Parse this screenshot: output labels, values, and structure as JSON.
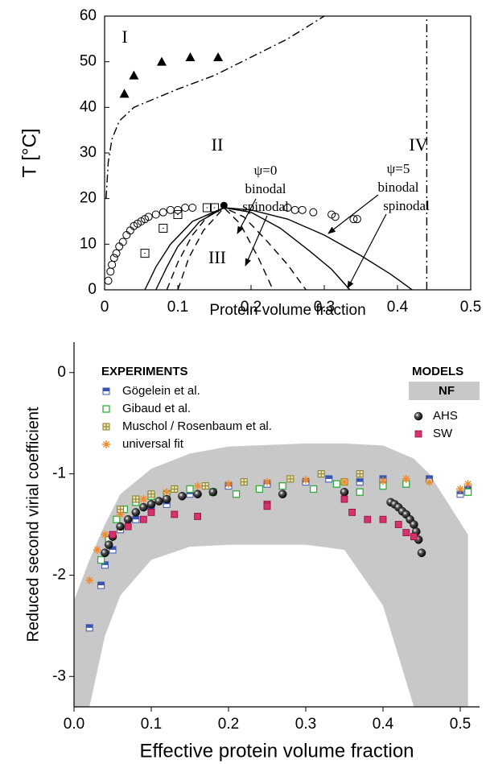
{
  "chart_data": [
    {
      "type": "scatter",
      "ylabel": "T [°C]",
      "xlabel": "Protein volume fraction",
      "xlim": [
        0,
        0.5
      ],
      "xticks": [
        0,
        0.1,
        0.2,
        0.3,
        0.4,
        0.5
      ],
      "ylim": [
        0,
        60
      ],
      "yticks": [
        0,
        10,
        20,
        30,
        40,
        50,
        60
      ],
      "annotations": [
        "I",
        "II",
        "III",
        "IV",
        "ψ=0",
        "binodal",
        "spinodal",
        "ψ=5",
        "binodal",
        "spinodal"
      ],
      "series": [
        {
          "marker": "triangle",
          "color": "#000000",
          "x": [
            0.027,
            0.04,
            0.078,
            0.117,
            0.155
          ],
          "values": [
            43,
            47,
            50,
            51,
            51
          ]
        },
        {
          "marker": "circle-open",
          "color": "#000000",
          "x": [
            0.005,
            0.008,
            0.01,
            0.013,
            0.016,
            0.02,
            0.025,
            0.03,
            0.035,
            0.04,
            0.045,
            0.05,
            0.055,
            0.06,
            0.07,
            0.08,
            0.09,
            0.1,
            0.11,
            0.12,
            0.25,
            0.26,
            0.27,
            0.285,
            0.31,
            0.315,
            0.34,
            0.345
          ],
          "values": [
            2,
            4,
            5.5,
            7,
            8,
            9.5,
            10.5,
            12,
            13,
            14,
            14.5,
            15,
            15.5,
            16,
            16.5,
            17,
            17.5,
            17.5,
            18,
            18,
            18,
            17.5,
            17.5,
            17,
            16.5,
            16,
            15.5,
            15.5
          ]
        },
        {
          "marker": "square-dot",
          "color": "#000000",
          "x": [
            0.055,
            0.08,
            0.1,
            0.14,
            0.15
          ],
          "values": [
            8,
            13.5,
            16.5,
            18,
            18
          ]
        },
        {
          "marker": "circle-filled",
          "color": "#000000",
          "x": [
            0.163
          ],
          "values": [
            18.5
          ]
        },
        {
          "dash": "dashdot",
          "color": "#000000",
          "x": [
            0.002,
            0.005,
            0.01,
            0.02,
            0.04,
            0.07,
            0.1,
            0.15,
            0.2,
            0.25,
            0.3
          ],
          "values": [
            20,
            28,
            33,
            37,
            40,
            42,
            44,
            47,
            51,
            55,
            60
          ]
        },
        {
          "dash": "dashdot",
          "color": "#000000",
          "x": [
            0.44,
            0.44
          ],
          "values": [
            0,
            60
          ]
        },
        {
          "dash": "solid",
          "color": "#000000",
          "x": [
            0.055,
            0.07,
            0.09,
            0.12,
            0.163,
            0.2,
            0.25,
            0.3,
            0.35,
            0.39,
            0.42
          ],
          "values": [
            0,
            5,
            10,
            15,
            18,
            17.5,
            15.5,
            12,
            7.5,
            3.5,
            0
          ]
        },
        {
          "dash": "solid",
          "color": "#000000",
          "x": [
            0.07,
            0.085,
            0.1,
            0.13,
            0.163,
            0.2,
            0.24,
            0.28,
            0.31,
            0.335
          ],
          "values": [
            0,
            5,
            9.5,
            15,
            18,
            17,
            13.5,
            8.5,
            4.5,
            0
          ]
        },
        {
          "dash": "dashed",
          "color": "#000000",
          "x": [
            0.085,
            0.1,
            0.12,
            0.14,
            0.163,
            0.19,
            0.22,
            0.25,
            0.275
          ],
          "values": [
            0,
            6,
            12,
            16,
            18,
            16,
            11,
            5.5,
            0
          ]
        },
        {
          "dash": "dashed",
          "color": "#000000",
          "x": [
            0.1,
            0.115,
            0.135,
            0.163,
            0.185,
            0.21,
            0.23
          ],
          "values": [
            0,
            7,
            13,
            18,
            14.5,
            7,
            0
          ]
        }
      ]
    },
    {
      "type": "scatter",
      "ylabel": "Reduced second virial coefficient",
      "xlabel": "Effective protein volume fraction",
      "xlim": [
        0,
        0.525
      ],
      "xticks": [
        {
          "value": 0,
          "label": "0.0"
        },
        0.1,
        0.2,
        0.3,
        0.4,
        0.5
      ],
      "ylim": [
        -3.3,
        0.3
      ],
      "yticks": [
        0,
        -1,
        -2,
        -3
      ],
      "legend_titles": [
        "EXPERIMENTS",
        "MODELS"
      ],
      "band": {
        "name": "NF",
        "color": "#c8c8c8",
        "x": [
          0,
          0.02,
          0.04,
          0.06,
          0.1,
          0.15,
          0.2,
          0.3,
          0.35,
          0.4,
          0.44,
          0.46,
          0.51
        ],
        "upper": [
          -2.25,
          -1.85,
          -1.5,
          -1.2,
          -0.95,
          -0.8,
          -0.73,
          -0.7,
          -0.7,
          -0.72,
          -0.85,
          -1.0,
          -1.6
        ],
        "lower": [
          -3.3,
          -3.3,
          -2.6,
          -2.2,
          -1.85,
          -1.72,
          -1.7,
          -1.7,
          -1.75,
          -2.3,
          -3.3,
          -3.3,
          -3.3
        ]
      },
      "series": [
        {
          "name": "Gögelein et al.",
          "marker": "square-half",
          "color": "#3a55b0",
          "x": [
            0.02,
            0.035,
            0.04,
            0.05,
            0.06,
            0.08,
            0.1,
            0.12,
            0.15,
            0.2,
            0.25,
            0.3,
            0.33,
            0.37,
            0.4,
            0.43,
            0.46,
            0.5,
            0.51
          ],
          "values": [
            -2.52,
            -2.1,
            -1.9,
            -1.75,
            -1.55,
            -1.45,
            -1.35,
            -1.3,
            -1.2,
            -1.12,
            -1.1,
            -1.08,
            -1.05,
            -1.08,
            -1.05,
            -1.1,
            -1.05,
            -1.2,
            -1.15
          ]
        },
        {
          "name": "Gibaud et al.",
          "marker": "square-open",
          "color": "#2fae3c",
          "x": [
            0.035,
            0.045,
            0.055,
            0.065,
            0.08,
            0.1,
            0.12,
            0.15,
            0.18,
            0.21,
            0.24,
            0.27,
            0.31,
            0.34,
            0.37,
            0.4,
            0.43,
            0.51
          ],
          "values": [
            -1.85,
            -1.65,
            -1.45,
            -1.35,
            -1.28,
            -1.22,
            -1.2,
            -1.15,
            -1.18,
            -1.2,
            -1.15,
            -1.12,
            -1.15,
            -1.1,
            -1.18,
            -1.12,
            -1.1,
            -1.18
          ]
        },
        {
          "name": "Muschol / Rosenbaum et al.",
          "marker": "square-plus",
          "color": "#8a7d2a",
          "x": [
            0.06,
            0.08,
            0.1,
            0.13,
            0.17,
            0.22,
            0.28,
            0.32,
            0.35,
            0.37
          ],
          "values": [
            -1.35,
            -1.25,
            -1.2,
            -1.15,
            -1.12,
            -1.08,
            -1.05,
            -1.0,
            -1.08,
            -1.0
          ]
        },
        {
          "name": "universal fit",
          "marker": "asterisk",
          "color": "#f08a2c",
          "x": [
            0.02,
            0.03,
            0.04,
            0.06,
            0.09,
            0.12,
            0.16,
            0.2,
            0.25,
            0.3,
            0.35,
            0.4,
            0.43,
            0.46,
            0.5,
            0.51
          ],
          "values": [
            -2.05,
            -1.75,
            -1.6,
            -1.4,
            -1.25,
            -1.18,
            -1.12,
            -1.1,
            -1.08,
            -1.06,
            -1.08,
            -1.07,
            -1.05,
            -1.08,
            -1.15,
            -1.1
          ]
        },
        {
          "name": "AHS",
          "marker": "sphere",
          "color": "#000000",
          "x": [
            0.04,
            0.045,
            0.05,
            0.06,
            0.07,
            0.08,
            0.09,
            0.1,
            0.11,
            0.12,
            0.14,
            0.16,
            0.18,
            0.27,
            0.35,
            0.41,
            0.415,
            0.42,
            0.425,
            0.43,
            0.435,
            0.44,
            0.443,
            0.446,
            0.45
          ],
          "values": [
            -1.78,
            -1.7,
            -1.62,
            -1.52,
            -1.45,
            -1.38,
            -1.33,
            -1.3,
            -1.27,
            -1.25,
            -1.22,
            -1.2,
            -1.18,
            -1.2,
            -1.18,
            -1.28,
            -1.3,
            -1.33,
            -1.37,
            -1.4,
            -1.45,
            -1.5,
            -1.57,
            -1.65,
            -1.78
          ]
        },
        {
          "name": "SW",
          "marker": "square",
          "color": "#d8326e",
          "x": [
            0.05,
            0.07,
            0.09,
            0.1,
            0.13,
            0.16,
            0.25,
            0.25,
            0.35,
            0.36,
            0.38,
            0.4,
            0.42,
            0.43,
            0.44
          ],
          "values": [
            -1.6,
            -1.52,
            -1.45,
            -1.38,
            -1.4,
            -1.42,
            -1.3,
            -1.32,
            -1.25,
            -1.38,
            -1.45,
            -1.45,
            -1.5,
            -1.58,
            -1.62
          ]
        }
      ]
    }
  ]
}
